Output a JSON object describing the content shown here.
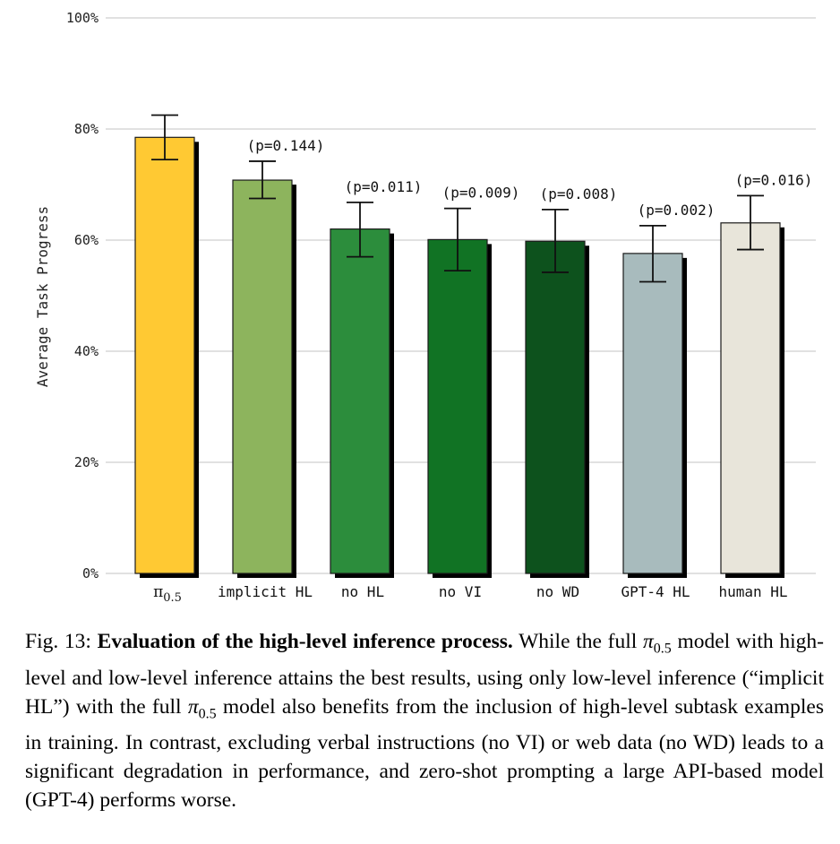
{
  "chart_data": {
    "type": "bar",
    "ylabel": "Average Task Progress",
    "xlabel": "",
    "ylim": [
      0,
      100
    ],
    "yticks": [
      "0%",
      "20%",
      "40%",
      "60%",
      "80%",
      "100%"
    ],
    "yticks_values": [
      0,
      20,
      40,
      60,
      80,
      100
    ],
    "grid": true,
    "categories": [
      {
        "main": "π",
        "sub": "0.5"
      },
      {
        "main": "implicit HL",
        "sub": ""
      },
      {
        "main": "no HL",
        "sub": ""
      },
      {
        "main": "no VI",
        "sub": ""
      },
      {
        "main": "no WD",
        "sub": ""
      },
      {
        "main": "GPT-4 HL",
        "sub": ""
      },
      {
        "main": "human HL",
        "sub": ""
      }
    ],
    "values": [
      78.5,
      70.8,
      62.0,
      60.1,
      59.8,
      57.6,
      63.1
    ],
    "error_low": [
      74.5,
      67.5,
      57.0,
      54.5,
      54.2,
      52.5,
      58.3
    ],
    "error_high": [
      82.5,
      74.2,
      66.8,
      65.7,
      65.5,
      62.6,
      68.0
    ],
    "p_values": [
      "",
      "(p=0.144)",
      "(p=0.011)",
      "(p=0.009)",
      "(p=0.008)",
      "(p=0.002)",
      "(p=0.016)"
    ],
    "colors": [
      "#ffc933",
      "#8db45d",
      "#2c8d3c",
      "#117324",
      "#0d521d",
      "#a8bbbd",
      "#e8e5da"
    ]
  },
  "caption": {
    "fig_label": "Fig. 13: ",
    "bold_title": "Evaluation of the high-level inference process.",
    "text_1": " While the full ",
    "pi_symbol": "π",
    "pi_sub": "0.5",
    "text_2": " model with high-level and low-level inference attains the best results, using only low-level inference (“implicit HL”) with the full ",
    "text_3": " model also benefits from the inclusion of high-level subtask examples in training. In contrast, excluding verbal instructions (no VI) or web data (no WD) leads to a significant degradation in performance, and zero-shot prompting a large API-based model (GPT-4) performs worse."
  }
}
